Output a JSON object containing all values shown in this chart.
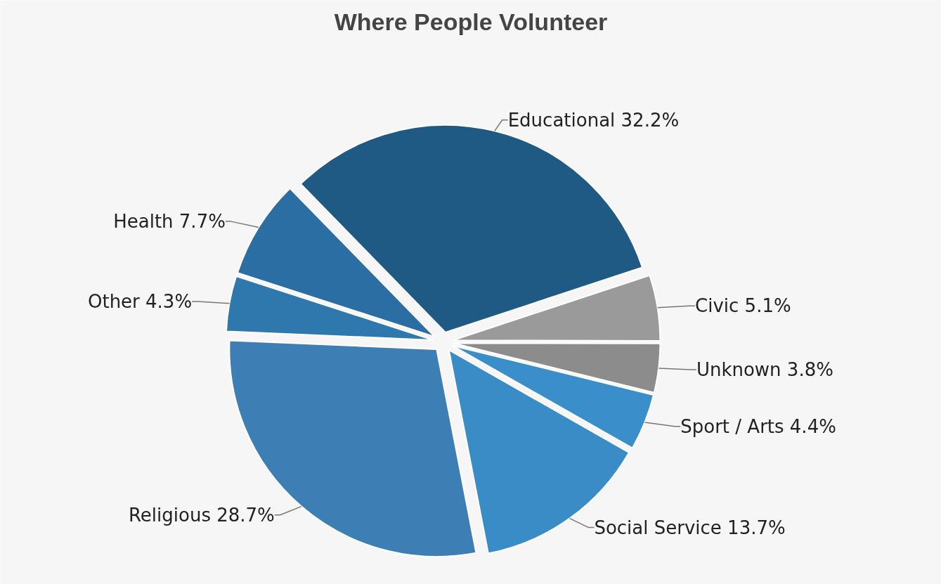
{
  "chart_data": {
    "type": "pie",
    "title": "Where People Volunteer",
    "categories": [
      "Educational",
      "Civic",
      "Unknown",
      "Sport / Arts",
      "Social Service",
      "Religious",
      "Other",
      "Health"
    ],
    "values": [
      32.2,
      5.1,
      3.8,
      4.4,
      13.7,
      28.7,
      4.3,
      7.7
    ],
    "value_labels": [
      "32.2%",
      "5.1%",
      "3.8%",
      "4.4%",
      "13.7%",
      "28.7%",
      "4.3%",
      "7.7%"
    ],
    "colors": [
      "#1f5a85",
      "#9a9a9a",
      "#8c8c8c",
      "#3a8ec9",
      "#3a8cc6",
      "#3d7fb4",
      "#2f78ae",
      "#2b6ea3"
    ]
  }
}
